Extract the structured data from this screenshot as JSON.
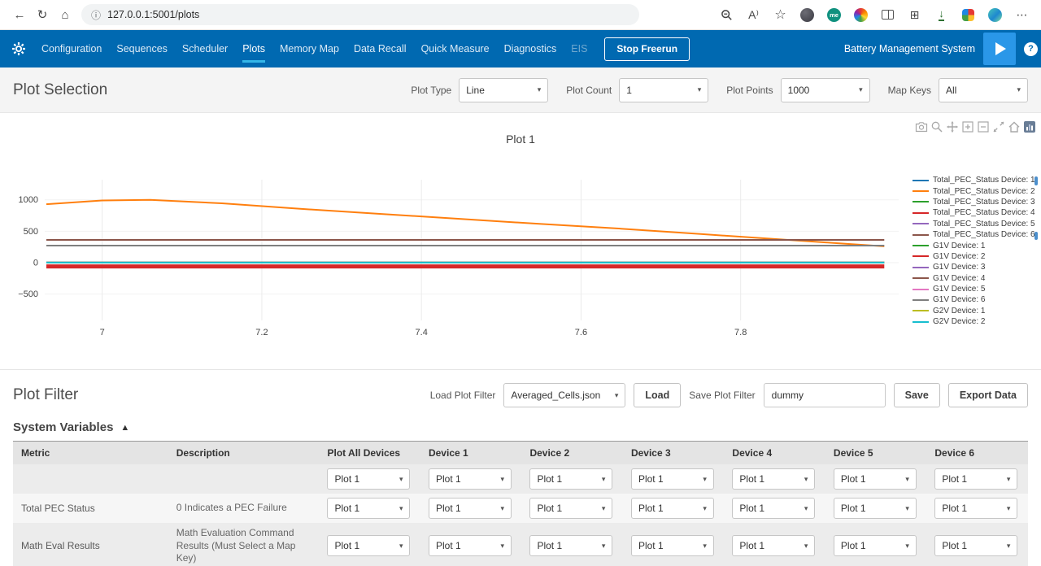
{
  "browser": {
    "url": "127.0.0.1:5001/plots"
  },
  "icons": {
    "back": "←",
    "refresh": "↻",
    "home": "⌂",
    "page_info": "ⓘ",
    "read_aloud": "A⁾",
    "favorites": "☆",
    "collections": "⊞",
    "downloads": "↓",
    "more": "⋯",
    "me_badge": "me",
    "caret": "▾",
    "collapse": "▲",
    "help": "?"
  },
  "navbar": {
    "items": [
      {
        "label": "Configuration",
        "state": "normal"
      },
      {
        "label": "Sequences",
        "state": "normal"
      },
      {
        "label": "Scheduler",
        "state": "normal"
      },
      {
        "label": "Plots",
        "state": "active"
      },
      {
        "label": "Memory Map",
        "state": "normal"
      },
      {
        "label": "Data Recall",
        "state": "normal"
      },
      {
        "label": "Quick Measure",
        "state": "normal"
      },
      {
        "label": "Diagnostics",
        "state": "normal"
      },
      {
        "label": "EIS",
        "state": "disabled"
      }
    ],
    "stop_button_label": "Stop Freerun",
    "app_title": "Battery Management System",
    "colors": {
      "bar": "#0069b1",
      "active_underline": "#35b6e8",
      "run_button": "#2a97e8"
    }
  },
  "plot_selection": {
    "title": "Plot Selection",
    "controls": [
      {
        "label": "Plot Type",
        "value": "Line"
      },
      {
        "label": "Plot Count",
        "value": "1"
      },
      {
        "label": "Plot Points",
        "value": "1000"
      },
      {
        "label": "Map Keys",
        "value": "All"
      }
    ]
  },
  "plot_toolbar": {
    "icons": [
      "camera",
      "zoom",
      "pan",
      "zoom-in",
      "zoom-out",
      "autoscale",
      "reset-axes",
      "plotly-logo"
    ]
  },
  "chart_data": {
    "type": "line",
    "title": "Plot 1",
    "xlabel": "",
    "ylabel": "",
    "xlim": [
      6.928,
      7.998
    ],
    "ylim": [
      -920,
      1320
    ],
    "xticks": [
      7,
      7.2,
      7.4,
      7.6,
      7.8
    ],
    "yticks": [
      1000,
      500,
      0,
      -500
    ],
    "grid": true,
    "legend_position": "right",
    "series": [
      {
        "name": "Total_PEC_Status Device: 1",
        "color": "#1f77b4",
        "width": 2,
        "points": [
          [
            6.93,
            0
          ],
          [
            7.98,
            0
          ]
        ]
      },
      {
        "name": "Total_PEC_Status Device: 2",
        "color": "#ff7f0e",
        "width": 2,
        "points": [
          [
            6.93,
            930
          ],
          [
            7.0,
            990
          ],
          [
            7.06,
            1000
          ],
          [
            7.15,
            945
          ],
          [
            7.25,
            855
          ],
          [
            7.35,
            775
          ],
          [
            7.45,
            695
          ],
          [
            7.55,
            615
          ],
          [
            7.65,
            540
          ],
          [
            7.75,
            455
          ],
          [
            7.85,
            370
          ],
          [
            7.92,
            310
          ],
          [
            7.98,
            260
          ]
        ]
      },
      {
        "name": "Total_PEC_Status Device: 3",
        "color": "#2ca02c",
        "width": 2,
        "points": [
          [
            6.93,
            0
          ],
          [
            7.98,
            0
          ]
        ]
      },
      {
        "name": "Total_PEC_Status Device: 4",
        "color": "#d62728",
        "width": 2,
        "points": [
          [
            6.93,
            0
          ],
          [
            7.98,
            0
          ]
        ]
      },
      {
        "name": "Total_PEC_Status Device: 5",
        "color": "#9467bd",
        "width": 2,
        "points": [
          [
            6.93,
            0
          ],
          [
            7.98,
            0
          ]
        ]
      },
      {
        "name": "Total_PEC_Status Device: 6",
        "color": "#8c564b",
        "width": 2,
        "points": [
          [
            6.93,
            0
          ],
          [
            7.98,
            0
          ]
        ]
      },
      {
        "name": "G1V Device: 1",
        "color": "#2ca02c",
        "width": 2,
        "points": [
          [
            6.93,
            0
          ],
          [
            7.98,
            0
          ]
        ]
      },
      {
        "name": "G1V Device: 2",
        "color": "#d62728",
        "width": 5,
        "points": [
          [
            6.93,
            -60
          ],
          [
            7.98,
            -60
          ]
        ]
      },
      {
        "name": "G1V Device: 3",
        "color": "#9467bd",
        "width": 2,
        "points": [
          [
            6.93,
            0
          ],
          [
            7.98,
            0
          ]
        ]
      },
      {
        "name": "G1V Device: 4",
        "color": "#8c564b",
        "width": 2,
        "points": [
          [
            6.93,
            362
          ],
          [
            7.98,
            362
          ]
        ]
      },
      {
        "name": "G1V Device: 5",
        "color": "#e377c2",
        "width": 2,
        "points": [
          [
            6.93,
            0
          ],
          [
            7.98,
            0
          ]
        ]
      },
      {
        "name": "G1V Device: 6",
        "color": "#7f7f7f",
        "width": 2,
        "points": [
          [
            6.93,
            271
          ],
          [
            7.98,
            271
          ]
        ]
      },
      {
        "name": "G2V Device: 1",
        "color": "#bcbd22",
        "width": 2,
        "points": [
          [
            6.93,
            0
          ],
          [
            7.98,
            0
          ]
        ]
      },
      {
        "name": "G2V Device: 2",
        "color": "#17becf",
        "width": 2,
        "points": [
          [
            6.93,
            0
          ],
          [
            7.98,
            0
          ]
        ]
      }
    ]
  },
  "plot_filter": {
    "title": "Plot Filter",
    "load_label": "Load Plot Filter",
    "load_value": "Averaged_Cells.json",
    "load_button": "Load",
    "save_label": "Save Plot Filter",
    "save_value": "dummy",
    "save_button": "Save",
    "export_button": "Export Data"
  },
  "system_variables": {
    "title": "System Variables",
    "columns": [
      "Metric",
      "Description",
      "Plot All Devices",
      "Device 1",
      "Device 2",
      "Device 3",
      "Device 4",
      "Device 5",
      "Device 6"
    ],
    "rows": [
      {
        "metric": "",
        "description": "",
        "selections": [
          "Plot 1",
          "Plot 1",
          "Plot 1",
          "Plot 1",
          "Plot 1",
          "Plot 1",
          "Plot 1"
        ]
      },
      {
        "metric": "Total PEC Status",
        "description": "0 Indicates a PEC Failure",
        "selections": [
          "Plot 1",
          "Plot 1",
          "Plot 1",
          "Plot 1",
          "Plot 1",
          "Plot 1",
          "Plot 1"
        ]
      },
      {
        "metric": "Math Eval Results",
        "description": "Math Evaluation Command Results (Must Select a Map Key)",
        "selections": [
          "Plot 1",
          "Plot 1",
          "Plot 1",
          "Plot 1",
          "Plot 1",
          "Plot 1",
          "Plot 1"
        ]
      }
    ]
  }
}
